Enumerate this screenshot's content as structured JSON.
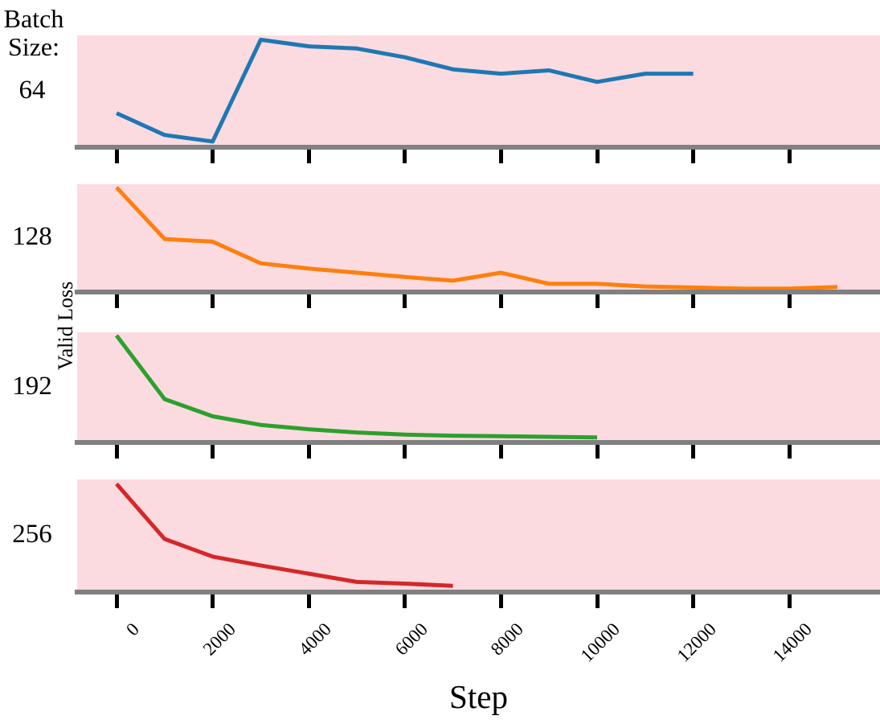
{
  "header": {
    "line1": "Batch",
    "line2": "Size:"
  },
  "chart_data": {
    "type": "line",
    "layout": "4 vertically stacked panels sharing one x axis, legend-free, one series per panel",
    "xlabel": "Step",
    "ylabel": "Valid Loss",
    "group_label": "Batch Size:",
    "x_ticks": [
      0,
      2000,
      4000,
      6000,
      8000,
      10000,
      12000,
      14000
    ],
    "xlim": [
      -800,
      15900
    ],
    "y_axis_note": "no numeric y tick labels shown; loss_rel is the fraction of panel height above the baseline",
    "plot_bg": "#fbdbe0",
    "axis_color": "#808080",
    "tick_color": "#000000",
    "panels": [
      {
        "batch_size": "64",
        "color": "#1f77b4",
        "steps": [
          0,
          1000,
          2000,
          3000,
          4000,
          5000,
          6000,
          7000,
          8000,
          9000,
          10000,
          11000,
          12000
        ],
        "loss_rel": [
          0.29,
          0.09,
          0.03,
          0.96,
          0.9,
          0.88,
          0.8,
          0.69,
          0.65,
          0.68,
          0.575,
          0.65,
          0.65
        ]
      },
      {
        "batch_size": "128",
        "color": "#ff7f0e",
        "steps": [
          0,
          1000,
          2000,
          3000,
          4000,
          5000,
          6000,
          7000,
          8000,
          9000,
          10000,
          11000,
          12000,
          13000,
          14000,
          15000
        ],
        "loss_rel": [
          0.97,
          0.48,
          0.455,
          0.25,
          0.2,
          0.16,
          0.12,
          0.085,
          0.16,
          0.055,
          0.055,
          0.03,
          0.02,
          0.01,
          0.01,
          0.025
        ]
      },
      {
        "batch_size": "192",
        "color": "#2ca02c",
        "steps": [
          0,
          1000,
          2000,
          3000,
          4000,
          5000,
          6000,
          7000,
          8000,
          9000,
          10000
        ],
        "loss_rel": [
          0.97,
          0.38,
          0.22,
          0.14,
          0.1,
          0.07,
          0.05,
          0.04,
          0.035,
          0.03,
          0.025
        ]
      },
      {
        "batch_size": "256",
        "color": "#d62728",
        "steps": [
          0,
          1000,
          2000,
          3000,
          4000,
          5000,
          6000,
          7000
        ],
        "loss_rel": [
          0.96,
          0.46,
          0.3,
          0.22,
          0.145,
          0.07,
          0.055,
          0.035
        ]
      }
    ]
  }
}
